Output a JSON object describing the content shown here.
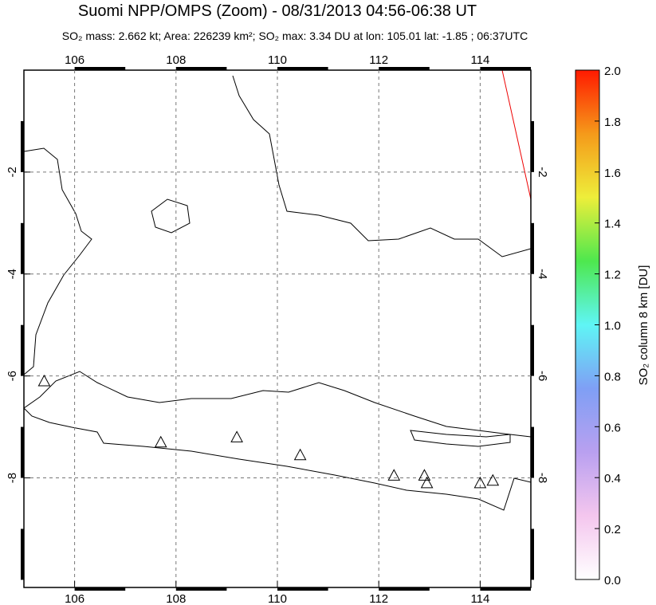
{
  "chart_data": {
    "type": "map",
    "title": "Suomi NPP/OMPS (Zoom) - 08/31/2013 04:56-06:38 UT",
    "subtitle": "SO₂ mass: 2.662 kt; Area: 226239 km²; SO₂ max: 3.34 DU at lon: 105.01 lat: -1.85 ; 06:37UTC",
    "colorbar_label": "SO₂ column 8 km [DU]",
    "xlim": [
      105,
      115
    ],
    "xticks": [
      106,
      108,
      110,
      112,
      114
    ],
    "ylim": [
      -10.15,
      0
    ],
    "yticks": [
      -2,
      -4,
      -6,
      -8
    ],
    "grid": true,
    "colorbar_lim": [
      0,
      2
    ],
    "colorbar_ticks": [
      {
        "value": 0,
        "label": "0.0"
      },
      {
        "value": 0.2,
        "label": "0.2"
      },
      {
        "value": 0.4,
        "label": "0.4"
      },
      {
        "value": 0.6,
        "label": "0.6"
      },
      {
        "value": 0.8,
        "label": "0.8"
      },
      {
        "value": 1,
        "label": "1.0"
      },
      {
        "value": 1.2,
        "label": "1.2"
      },
      {
        "value": 1.4,
        "label": "1.4"
      },
      {
        "value": 1.6,
        "label": "1.6"
      },
      {
        "value": 1.8,
        "label": "1.8"
      },
      {
        "value": 2,
        "label": "2.0"
      }
    ],
    "colors": [
      "#ffffff",
      "#f4c6ee",
      "#b9a0f0",
      "#7f9ff5",
      "#5ff5f5",
      "#4ee84e",
      "#eeee3a",
      "#f59a1a",
      "#ff1a00"
    ],
    "volcanoes": {
      "lon": [
        105.4,
        107.7,
        109.2,
        110.45,
        112.3,
        112.9,
        112.95,
        114.0,
        114.25
      ],
      "lat": [
        -6.1,
        -7.3,
        -7.2,
        -7.55,
        -7.95,
        -7.95,
        -8.1,
        -8.1,
        -8.05
      ]
    }
  }
}
